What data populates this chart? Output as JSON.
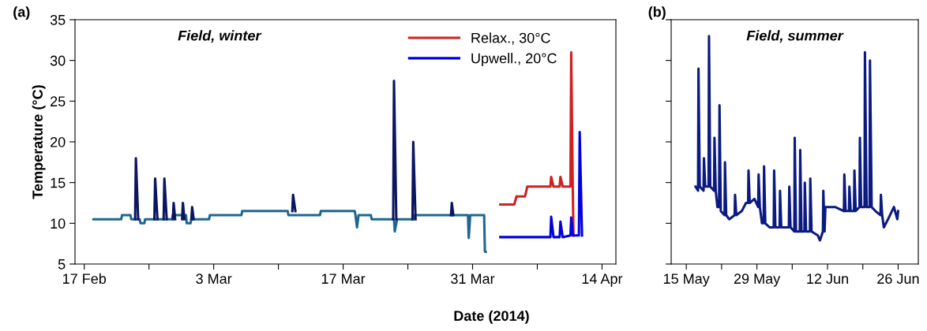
{
  "chart_data": [
    {
      "type": "line",
      "title": "(a)",
      "xlabel": "Date (2014)",
      "ylabel": "Temperature (°C)",
      "annotations": [
        "Field, winter"
      ],
      "xlim": [
        "2014-02-16",
        "2014-04-15T12:00"
      ],
      "xticks": [
        {
          "value": "2014-02-17",
          "label": "17 Feb"
        },
        {
          "value": "2014-02-24",
          "label": null
        },
        {
          "value": "2014-03-03",
          "label": "3 Mar"
        },
        {
          "value": "2014-03-10",
          "label": null
        },
        {
          "value": "2014-03-17",
          "label": "17 Mar"
        },
        {
          "value": "2014-03-24",
          "label": null
        },
        {
          "value": "2014-03-31",
          "label": "31 Mar"
        },
        {
          "value": "2014-04-07",
          "label": null
        },
        {
          "value": "2014-04-14",
          "label": "14 Apr"
        }
      ],
      "ylim": [
        5,
        35
      ],
      "yticks": [
        5,
        10,
        15,
        20,
        25,
        30,
        35
      ],
      "grid": false,
      "legend": "top right",
      "line_style": "solid",
      "marker": "none",
      "series": [
        {
          "color": "#1e6690",
          "x": [
            "2014-02-18T00:00",
            "2014-02-21T00:00",
            "2014-02-21T02:00",
            "2014-02-22T00:00",
            "2014-02-22T02:00",
            "2014-02-23T00:00",
            "2014-02-23T02:00",
            "2014-02-23T12:00",
            "2014-02-23T14:00",
            "2014-02-26T12:00",
            "2014-02-26T14:00",
            "2014-02-28T00:00",
            "2014-02-28T02:00",
            "2014-02-28T12:00",
            "2014-02-28T14:00",
            "2014-03-02T12:00",
            "2014-03-02T14:00",
            "2014-03-06T00:00",
            "2014-03-06T02:00",
            "2014-03-11T00:00",
            "2014-03-11T02:00",
            "2014-03-14T12:00",
            "2014-03-14T14:00",
            "2014-03-18T06:00",
            "2014-03-18T08:00",
            "2014-03-18T12:00",
            "2014-03-18T16:00",
            "2014-03-20T00:00",
            "2014-03-20T02:00",
            "2014-03-22T12:00",
            "2014-03-22T14:00",
            "2014-03-22T20:00",
            "2014-03-24T16:00",
            "2014-03-24T18:00",
            "2014-03-30T12:00",
            "2014-03-30T14:00",
            "2014-03-30T18:00",
            "2014-04-01T06:00",
            "2014-04-01T08:00",
            "2014-04-01T10:00"
          ],
          "values": [
            10.5,
            10.5,
            11.0,
            11.0,
            10.5,
            10.5,
            10.0,
            10.0,
            10.5,
            10.5,
            11.0,
            11.0,
            10.0,
            10.0,
            10.5,
            10.5,
            11.0,
            11.0,
            11.5,
            11.5,
            11.0,
            11.0,
            11.5,
            11.5,
            11.0,
            9.5,
            11.0,
            11.0,
            10.5,
            10.5,
            9.0,
            10.5,
            10.5,
            11.0,
            11.0,
            8.2,
            11.0,
            11.0,
            6.5,
            6.5
          ]
        },
        {
          "color": "#0b1560",
          "x": [
            "2014-02-22T12:00",
            "2014-02-22T14:00",
            "2014-02-22T20:00",
            "2014-02-23T00:00",
            "2014-02-24T14:00",
            "2014-02-24T16:00",
            "2014-02-24T22:00",
            "2014-02-25T00:00",
            "2014-02-25T14:00",
            "2014-02-25T16:00",
            "2014-02-25T22:00",
            "2014-02-26T00:00",
            "2014-02-26T14:00",
            "2014-02-26T16:00",
            "2014-02-26T20:00",
            "2014-02-27T00:00",
            "2014-02-27T14:00",
            "2014-02-27T16:00",
            "2014-02-27T20:00",
            "2014-02-28T00:00",
            "2014-02-28T14:00",
            "2014-02-28T16:00",
            "2014-02-28T20:00",
            "2014-03-01T00:00",
            "2014-03-11T12:00",
            "2014-03-11T14:00",
            "2014-03-11T20:00",
            "2014-03-12T00:00",
            "2014-03-22T10:00",
            "2014-03-22T12:00",
            "2014-03-22T18:00",
            "2014-03-23T00:00",
            "2014-03-24T12:00",
            "2014-03-24T14:00",
            "2014-03-24T20:00",
            "2014-03-25T00:00",
            "2014-03-28T16:00",
            "2014-03-28T18:00",
            "2014-03-28T22:00"
          ],
          "values": [
            10.5,
            18.0,
            10.5,
            null,
            10.5,
            15.5,
            10.5,
            null,
            10.5,
            15.5,
            10.5,
            null,
            10.5,
            12.5,
            10.5,
            null,
            10.5,
            12.5,
            10.5,
            null,
            10.5,
            12.0,
            10.5,
            null,
            11.5,
            13.5,
            11.5,
            null,
            10.5,
            27.5,
            10.5,
            null,
            10.5,
            20.0,
            10.5,
            null,
            11.0,
            12.5,
            11.0
          ]
        },
        {
          "name": "Relax., 30°C",
          "color": "#d02020",
          "x": [
            "2014-04-03T00:00",
            "2014-04-04T12:00",
            "2014-04-04T18:00",
            "2014-04-05T16:00",
            "2014-04-05T22:00",
            "2014-04-08T10:00",
            "2014-04-08T12:00",
            "2014-04-08T18:00",
            "2014-04-09T10:00",
            "2014-04-09T12:00",
            "2014-04-09T18:00",
            "2014-04-10T14:00",
            "2014-04-10T16:00",
            "2014-04-10T20:00",
            "2014-04-10T22:00"
          ],
          "values": [
            12.3,
            12.3,
            13.3,
            13.3,
            14.5,
            14.5,
            15.7,
            14.5,
            14.5,
            15.7,
            14.5,
            14.5,
            31.0,
            14.5,
            8.5
          ]
        },
        {
          "name": "Upwell., 20°C",
          "color": "#0000e0",
          "x": [
            "2014-04-03T00:00",
            "2014-04-08T10:00",
            "2014-04-08T12:00",
            "2014-04-08T18:00",
            "2014-04-09T10:00",
            "2014-04-09T12:00",
            "2014-04-09T18:00",
            "2014-04-10T14:00",
            "2014-04-10T16:00",
            "2014-04-10T20:00",
            "2014-04-11T12:00",
            "2014-04-11T14:00",
            "2014-04-11T20:00"
          ],
          "values": [
            8.3,
            8.3,
            10.8,
            8.3,
            8.3,
            10.2,
            8.3,
            8.5,
            10.7,
            8.5,
            8.5,
            21.2,
            8.5
          ]
        }
      ]
    },
    {
      "type": "line",
      "title": "(b)",
      "annotations": [
        "Field, summer"
      ],
      "xlim": [
        "2014-05-12",
        "2014-06-30"
      ],
      "xticks": [
        {
          "value": "2014-05-15",
          "label": "15 May"
        },
        {
          "value": "2014-05-22",
          "label": null
        },
        {
          "value": "2014-05-29",
          "label": "29 May"
        },
        {
          "value": "2014-06-05",
          "label": null
        },
        {
          "value": "2014-06-12",
          "label": "12 Jun"
        },
        {
          "value": "2014-06-19",
          "label": null
        },
        {
          "value": "2014-06-26",
          "label": "26 Jun"
        }
      ],
      "ylim": [
        5,
        35
      ],
      "yticks": [
        5,
        10,
        15,
        20,
        25,
        30,
        35
      ],
      "tick_labels": "x",
      "grid": false,
      "line_style": "solid",
      "marker": "none",
      "series": [
        {
          "color": "#0b1a80",
          "x": [
            "2014-05-16T20:00",
            "2014-05-17T08:00",
            "2014-05-17T10:00",
            "2014-05-17T16:00",
            "2014-05-18T10:00",
            "2014-05-18T12:00",
            "2014-05-18T18:00",
            "2014-05-19T10:00",
            "2014-05-19T12:00",
            "2014-05-19T18:00",
            "2014-05-20T12:00",
            "2014-05-20T14:00",
            "2014-05-20T20:00",
            "2014-05-21T04:00",
            "2014-05-21T12:00",
            "2014-05-21T14:00",
            "2014-05-21T20:00",
            "2014-05-22T14:00",
            "2014-05-22T16:00",
            "2014-05-22T22:00",
            "2014-05-23T12:00",
            "2014-05-24T14:00",
            "2014-05-24T16:00",
            "2014-05-24T22:00",
            "2014-05-26T00:00",
            "2014-05-26T20:00",
            "2014-05-27T06:00",
            "2014-05-27T08:00",
            "2014-05-27T14:00",
            "2014-05-28T12:00",
            "2014-05-29T06:00",
            "2014-05-29T08:00",
            "2014-05-29T14:00",
            "2014-05-30T00:00",
            "2014-05-30T08:00",
            "2014-05-30T10:00",
            "2014-05-30T16:00",
            "2014-05-31T12:00",
            "2014-06-01T08:00",
            "2014-06-01T10:00",
            "2014-06-01T16:00",
            "2014-06-02T12:00",
            "2014-06-02T14:00",
            "2014-06-02T20:00",
            "2014-06-04T08:00",
            "2014-06-04T10:00",
            "2014-06-04T16:00",
            "2014-06-05T10:00",
            "2014-06-05T12:00",
            "2014-06-05T18:00",
            "2014-06-06T12:00",
            "2014-06-06T14:00",
            "2014-06-06T20:00",
            "2014-06-07T10:00",
            "2014-06-07T12:00",
            "2014-06-07T18:00",
            "2014-06-08T12:00",
            "2014-06-08T14:00",
            "2014-06-08T20:00",
            "2014-06-10T02:00",
            "2014-06-10T12:00",
            "2014-06-11T02:00",
            "2014-06-11T04:00",
            "2014-06-11T10:00",
            "2014-06-11T14:00",
            "2014-06-13T12:00",
            "2014-06-15T06:00",
            "2014-06-15T08:00",
            "2014-06-15T14:00",
            "2014-06-16T06:00",
            "2014-06-16T08:00",
            "2014-06-16T14:00",
            "2014-06-17T06:00",
            "2014-06-17T08:00",
            "2014-06-17T14:00",
            "2014-06-18T08:00",
            "2014-06-18T10:00",
            "2014-06-18T16:00",
            "2014-06-19T08:00",
            "2014-06-19T10:00",
            "2014-06-19T18:00",
            "2014-06-20T08:00",
            "2014-06-20T10:00",
            "2014-06-20T18:00",
            "2014-06-21T12:00",
            "2014-06-22T12:00",
            "2014-06-22T14:00",
            "2014-06-22T20:00",
            "2014-06-23T04:00",
            "2014-06-24T00:00",
            "2014-06-25T04:00",
            "2014-06-25T20:00",
            "2014-06-26T00:00"
          ],
          "values": [
            14.5,
            14.0,
            29.0,
            14.5,
            14.0,
            18.0,
            14.5,
            14.5,
            33.0,
            14.5,
            14.0,
            20.5,
            14.0,
            12.0,
            12.0,
            24.5,
            11.5,
            11.0,
            17.5,
            11.0,
            10.5,
            11.0,
            13.5,
            11.0,
            11.5,
            12.5,
            12.5,
            16.5,
            12.5,
            13.0,
            12.0,
            16.0,
            12.0,
            10.0,
            10.0,
            17.0,
            10.0,
            9.5,
            9.5,
            16.5,
            9.5,
            9.5,
            14.0,
            9.5,
            9.5,
            14.5,
            9.5,
            9.0,
            20.5,
            9.0,
            9.0,
            19.0,
            9.0,
            9.0,
            15.0,
            9.0,
            9.0,
            15.5,
            9.0,
            8.5,
            7.9,
            9.0,
            14.0,
            9.0,
            12.0,
            12.0,
            11.5,
            16.0,
            11.5,
            11.5,
            14.5,
            11.5,
            11.5,
            16.5,
            11.5,
            12.0,
            20.5,
            12.0,
            12.0,
            31.0,
            12.0,
            12.0,
            30.0,
            12.0,
            11.5,
            11.0,
            13.5,
            11.0,
            9.5,
            10.5,
            12.0,
            10.5,
            11.5
          ]
        }
      ]
    }
  ]
}
